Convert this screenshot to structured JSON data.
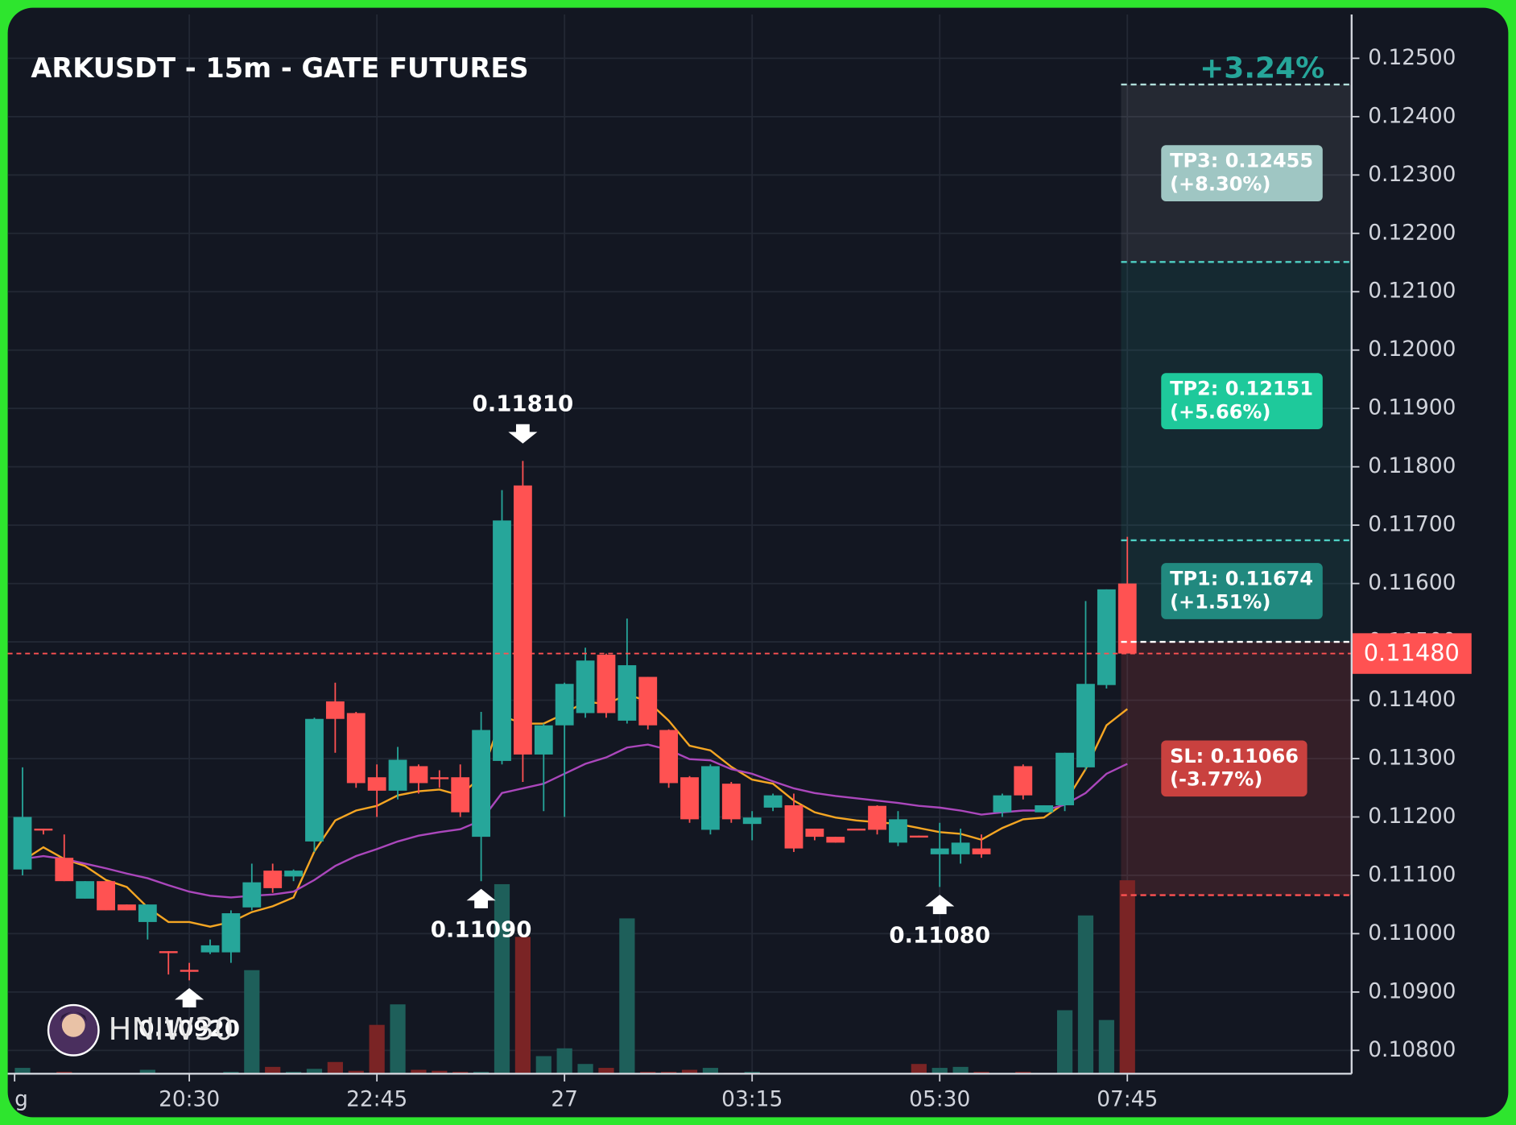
{
  "chart_data": {
    "type": "candlestick",
    "title": "ARKUSDT - 15m - GATE FUTURES",
    "change_label": "+3.24%",
    "watermark": "HNIW30",
    "up_color": "#26a69a",
    "down_color": "#ff5252",
    "volume_up_color": "#1e5f5a",
    "volume_down_color": "#7a2425",
    "open": [
      0.1111,
      0.1118,
      0.1113,
      0.1106,
      0.1109,
      0.1105,
      0.1102,
      0.1097,
      0.10938,
      0.10968,
      0.10968,
      0.11045,
      0.11108,
      0.11098,
      0.11158,
      0.11398,
      0.11378,
      0.11268,
      0.11245,
      0.11287,
      0.11268,
      0.11268,
      0.11166,
      0.11296,
      0.11768,
      0.11307,
      0.11357,
      0.11378,
      0.11478,
      0.11365,
      0.1144,
      0.11349,
      0.11268,
      0.11178,
      0.11257,
      0.11188,
      0.11216,
      0.1122,
      0.1118,
      0.11166,
      0.1118,
      0.11219,
      0.11156,
      0.11168,
      0.11136,
      0.11136,
      0.11146,
      0.11208,
      0.11287,
      0.11208,
      0.1122,
      0.11285,
      0.11426,
      0.116
    ],
    "high": [
      0.11285,
      0.1118,
      0.1117,
      0.1109,
      0.1109,
      0.1105,
      0.1105,
      0.1097,
      0.1095,
      0.1099,
      0.1104,
      0.1112,
      0.1112,
      0.1111,
      0.1137,
      0.1143,
      0.1138,
      0.1129,
      0.1132,
      0.1129,
      0.1128,
      0.1129,
      0.1138,
      0.1176,
      0.1181,
      0.1136,
      0.1143,
      0.1149,
      0.1148,
      0.1154,
      0.1144,
      0.1135,
      0.1127,
      0.1129,
      0.1126,
      0.1121,
      0.1124,
      0.1124,
      0.1118,
      0.11166,
      0.1118,
      0.1122,
      0.1121,
      0.11168,
      0.1119,
      0.1118,
      0.1117,
      0.1124,
      0.1129,
      0.1122,
      0.1131,
      0.1157,
      0.1159,
      0.1168
    ],
    "low": [
      0.111,
      0.1117,
      0.1109,
      0.1106,
      0.1104,
      0.1104,
      0.1099,
      0.1093,
      0.1092,
      0.10965,
      0.1095,
      0.1104,
      0.1107,
      0.1109,
      0.1114,
      0.1131,
      0.1125,
      0.112,
      0.1123,
      0.1124,
      0.1125,
      0.112,
      0.1109,
      0.1129,
      0.1126,
      0.1121,
      0.112,
      0.1137,
      0.1137,
      0.1136,
      0.1135,
      0.1125,
      0.1119,
      0.1117,
      0.1119,
      0.1116,
      0.1121,
      0.1114,
      0.1116,
      0.11156,
      0.11178,
      0.1117,
      0.1115,
      0.11166,
      0.1108,
      0.1112,
      0.1113,
      0.112,
      0.1123,
      0.11208,
      0.1121,
      0.1128,
      0.1142,
      0.1148
    ],
    "close": [
      0.112,
      0.11178,
      0.1109,
      0.1109,
      0.1104,
      0.1104,
      0.1105,
      0.10968,
      0.10935,
      0.1098,
      0.11035,
      0.11088,
      0.11078,
      0.11108,
      0.11368,
      0.11368,
      0.11258,
      0.11245,
      0.11298,
      0.11258,
      0.11265,
      0.11208,
      0.11349,
      0.11708,
      0.11307,
      0.11357,
      0.11428,
      0.11468,
      0.11378,
      0.1146,
      0.11357,
      0.11258,
      0.11196,
      0.11287,
      0.11196,
      0.11199,
      0.11237,
      0.11146,
      0.11166,
      0.11156,
      0.11178,
      0.11178,
      0.11196,
      0.11166,
      0.11146,
      0.11156,
      0.11136,
      0.11237,
      0.11237,
      0.1122,
      0.1131,
      0.11428,
      0.1159,
      0.1148
    ],
    "volume": [
      6,
      0,
      2,
      0,
      0,
      0,
      4,
      0,
      0,
      0,
      2,
      106,
      7,
      2,
      5,
      12,
      3,
      50,
      71,
      4,
      3,
      2,
      2,
      194,
      140,
      18,
      26,
      10,
      6,
      159,
      2,
      2,
      4,
      6,
      1,
      2,
      0,
      0,
      0,
      0,
      0,
      0,
      0,
      10,
      6,
      7,
      2,
      0,
      2,
      0,
      65,
      162,
      55,
      198
    ],
    "overlays": [
      {
        "color": "#f5a623",
        "values": [
          0.11125,
          0.11148,
          0.11128,
          0.11116,
          0.11092,
          0.1108,
          0.11045,
          0.1102,
          0.1102,
          0.11012,
          0.1102,
          0.11037,
          0.11047,
          0.11062,
          0.11141,
          0.11194,
          0.11211,
          0.11219,
          0.11237,
          0.11244,
          0.11247,
          0.11237,
          0.11269,
          0.11373,
          0.1136,
          0.1136,
          0.11377,
          0.11398,
          0.11393,
          0.1141,
          0.11398,
          0.11365,
          0.11322,
          0.11314,
          0.11286,
          0.11264,
          0.11257,
          0.11228,
          0.11208,
          0.11199,
          0.11194,
          0.11191,
          0.11188,
          0.11181,
          0.11174,
          0.11171,
          0.11161,
          0.11181,
          0.11196,
          0.11199,
          0.11224,
          0.11282,
          0.11357,
          0.11385
        ]
      },
      {
        "color": "#ab47bc",
        "values": [
          0.11128,
          0.11133,
          0.11128,
          0.1112,
          0.11112,
          0.11103,
          0.11095,
          0.11083,
          0.11072,
          0.11065,
          0.11062,
          0.11065,
          0.11067,
          0.11072,
          0.11092,
          0.11116,
          0.11133,
          0.11145,
          0.11158,
          0.11168,
          0.11174,
          0.11179,
          0.11194,
          0.11241,
          0.11249,
          0.11257,
          0.11274,
          0.11291,
          0.11302,
          0.11319,
          0.11324,
          0.11315,
          0.11299,
          0.11297,
          0.11282,
          0.11274,
          0.11261,
          0.11249,
          0.11241,
          0.11236,
          0.11232,
          0.11228,
          0.11224,
          0.11219,
          0.11216,
          0.11211,
          0.11204,
          0.11208,
          0.11211,
          0.11211,
          0.11221,
          0.11241,
          0.11274,
          0.11291
        ]
      }
    ],
    "annotations": [
      {
        "label": "0.11810",
        "x": 24,
        "y": 0.1181,
        "kind": "high"
      },
      {
        "label": "0.11090",
        "x": 22,
        "y": 0.1109,
        "kind": "low"
      },
      {
        "label": "0.11080",
        "x": 44,
        "y": 0.1108,
        "kind": "low"
      },
      {
        "label": "0.10920",
        "x": 8,
        "y": 0.1092,
        "kind": "low"
      }
    ],
    "last_price": {
      "label": "0.11480",
      "value": 0.1148
    },
    "entry": 0.115,
    "targets": [
      {
        "label": "TP1: 0.11674",
        "change_label": "(+1.51%)",
        "value": 0.11674,
        "color": "#21897f"
      },
      {
        "label": "TP2: 0.12151",
        "change_label": "(+5.66%)",
        "value": 0.12151,
        "color": "#1ec99b"
      },
      {
        "label": "TP3: 0.12455",
        "change_label": "(+8.30%)",
        "value": 0.12455,
        "color": "#9fc6c3"
      }
    ],
    "stop": {
      "label": "SL: 0.11066",
      "change_label": "(-3.77%)",
      "value": 0.11066,
      "color": "#c9413f"
    },
    "xlim": [
      -0.71,
      63.76
    ],
    "xticks": [
      {
        "value": -0.38,
        "label": "g"
      },
      {
        "value": 8,
        "label": "20:30"
      },
      {
        "value": 17,
        "label": "22:45"
      },
      {
        "value": 26,
        "label": "27"
      },
      {
        "value": 35,
        "label": "03:15"
      },
      {
        "value": 44,
        "label": "05:30"
      },
      {
        "value": 53,
        "label": "07:45"
      }
    ],
    "ylim": [
      0.1076,
      0.12575
    ],
    "yticks": [
      {
        "value": 0.108,
        "label": "0.10800"
      },
      {
        "value": 0.109,
        "label": "0.10900"
      },
      {
        "value": 0.11,
        "label": "0.11000"
      },
      {
        "value": 0.111,
        "label": "0.11100"
      },
      {
        "value": 0.112,
        "label": "0.11200"
      },
      {
        "value": 0.113,
        "label": "0.11300"
      },
      {
        "value": 0.114,
        "label": "0.11400"
      },
      {
        "value": 0.115,
        "label": "0.11500"
      },
      {
        "value": 0.116,
        "label": "0.11600"
      },
      {
        "value": 0.117,
        "label": "0.11700"
      },
      {
        "value": 0.118,
        "label": "0.11800"
      },
      {
        "value": 0.119,
        "label": "0.11900"
      },
      {
        "value": 0.12,
        "label": "0.12000"
      },
      {
        "value": 0.121,
        "label": "0.12100"
      },
      {
        "value": 0.122,
        "label": "0.12200"
      },
      {
        "value": 0.123,
        "label": "0.12300"
      },
      {
        "value": 0.124,
        "label": "0.12400"
      },
      {
        "value": 0.125,
        "label": "0.12500"
      }
    ],
    "grid": true
  }
}
